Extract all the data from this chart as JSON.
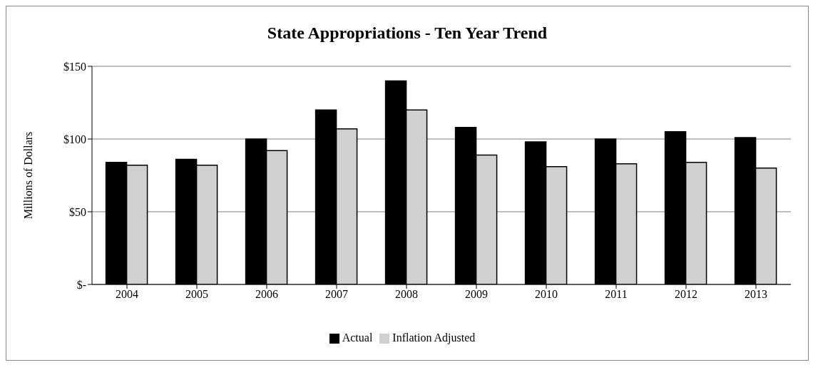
{
  "chart_data": {
    "type": "bar",
    "title": "State Appropriations -  Ten Year Trend",
    "ylabel": "Millions of Dollars",
    "categories": [
      "2004",
      "2005",
      "2006",
      "2007",
      "2008",
      "2009",
      "2010",
      "2011",
      "2012",
      "2013"
    ],
    "series": [
      {
        "name": "Actual",
        "color": "#000000",
        "values": [
          84,
          86,
          100,
          120,
          140,
          108,
          98,
          100,
          105,
          101
        ]
      },
      {
        "name": "Inflation Adjusted",
        "color": "#d0d0d0",
        "values": [
          82,
          82,
          92,
          107,
          120,
          89,
          81,
          83,
          84,
          80
        ]
      }
    ],
    "ylim": [
      0,
      150
    ],
    "yticks": [
      {
        "value": 0,
        "label": "$-"
      },
      {
        "value": 50,
        "label": "$50"
      },
      {
        "value": 100,
        "label": "$100"
      },
      {
        "value": 150,
        "label": "$150"
      }
    ],
    "grid": "y",
    "legend": "bottom"
  }
}
